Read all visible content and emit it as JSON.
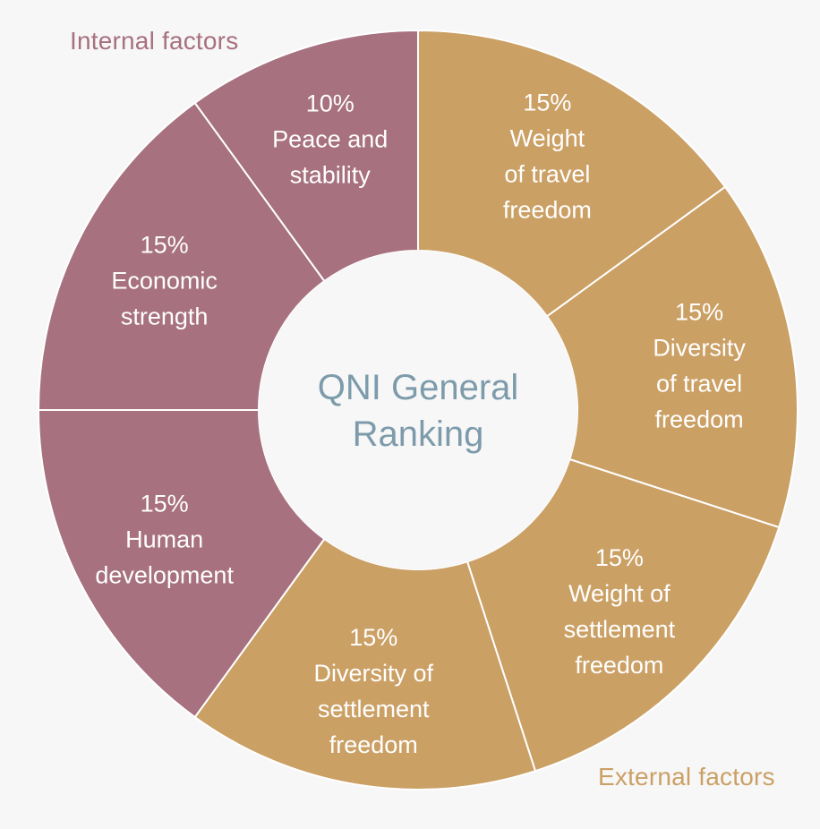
{
  "chart_data": {
    "type": "pie",
    "center_label": [
      "QNI General",
      "Ranking"
    ],
    "groups": [
      {
        "name": "Internal factors",
        "color": "#a7717f"
      },
      {
        "name": "External factors",
        "color": "#cba065"
      }
    ],
    "slices": [
      {
        "percent_label": "15%",
        "label_lines": [
          "Weight",
          "of travel",
          "freedom"
        ],
        "value": 15,
        "group": 1
      },
      {
        "percent_label": "15%",
        "label_lines": [
          "Diversity",
          "of travel",
          "freedom"
        ],
        "value": 15,
        "group": 1
      },
      {
        "percent_label": "15%",
        "label_lines": [
          "Weight of",
          "settlement",
          "freedom"
        ],
        "value": 15,
        "group": 1
      },
      {
        "percent_label": "15%",
        "label_lines": [
          "Diversity of",
          "settlement",
          "freedom"
        ],
        "value": 15,
        "group": 1
      },
      {
        "percent_label": "15%",
        "label_lines": [
          "Human",
          "development"
        ],
        "value": 15,
        "group": 0
      },
      {
        "percent_label": "15%",
        "label_lines": [
          "Economic",
          "strength"
        ],
        "value": 15,
        "group": 0
      },
      {
        "percent_label": "10%",
        "label_lines": [
          "Peace and",
          "stability"
        ],
        "value": 10,
        "group": 0
      }
    ]
  }
}
